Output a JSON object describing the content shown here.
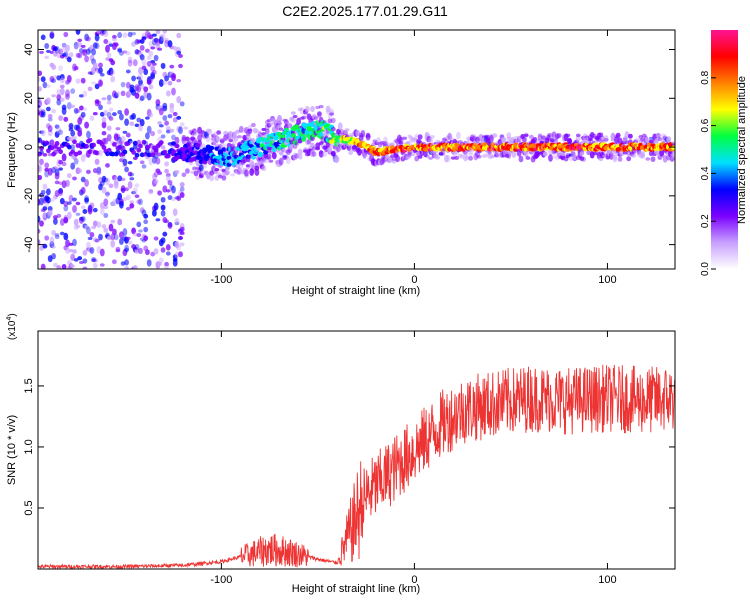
{
  "title": "C2E2.2025.177.01.29.G11",
  "chart_data": [
    {
      "type": "heatmap",
      "xlabel": "Height of straight line (km)",
      "ylabel": "Frequency (Hz)",
      "xlim": [
        -195,
        135
      ],
      "ylim": [
        -50,
        48
      ],
      "x_ticks": [
        -100,
        0,
        100
      ],
      "y_ticks": [
        -40,
        -20,
        0,
        20,
        40
      ],
      "colorbar": {
        "label": "Normalized spectral amplitude",
        "range": [
          0,
          1
        ],
        "ticks": [
          0.0,
          0.2,
          0.4,
          0.6,
          0.8
        ],
        "colors": [
          "#ffffff",
          "#c8a0ff",
          "#7a00ff",
          "#0000ff",
          "#00e0ff",
          "#00ff40",
          "#ffff00",
          "#ff8000",
          "#ff0000",
          "#ff1493"
        ]
      },
      "ridge": {
        "x": [
          -195,
          -160,
          -130,
          -110,
          -95,
          -80,
          -65,
          -55,
          -48,
          -40,
          -30,
          -20,
          -10,
          0,
          10,
          30,
          60,
          100,
          135
        ],
        "frequency": [
          0,
          0,
          -1,
          -3,
          -4,
          0,
          4,
          7,
          7,
          4,
          2,
          -2,
          -1,
          0,
          0,
          0,
          0,
          0,
          0
        ],
        "amplitude": [
          0.2,
          0.2,
          0.25,
          0.35,
          0.45,
          0.5,
          0.55,
          0.6,
          0.6,
          0.65,
          0.8,
          0.85,
          0.9,
          0.92,
          0.92,
          0.92,
          0.92,
          0.92,
          0.92
        ]
      }
    },
    {
      "type": "line",
      "xlabel": "Height of straight line (km)",
      "ylabel": "SNR (10 * v/v)",
      "y_multiplier": "(x10^4)",
      "xlim": [
        -195,
        135
      ],
      "ylim": [
        0,
        1.95
      ],
      "x_ticks": [
        -100,
        0,
        100
      ],
      "y_ticks": [
        0.5,
        1.0,
        1.5
      ],
      "y_tick_labels": [
        "0.5",
        "1.0",
        "1.5"
      ],
      "color": "#ee3333",
      "envelope": {
        "x": [
          -195,
          -150,
          -120,
          -100,
          -85,
          -75,
          -65,
          -50,
          -40,
          -32,
          -25,
          -15,
          -5,
          5,
          15,
          25,
          40,
          60,
          80,
          100,
          120,
          135
        ],
        "y": [
          0.02,
          0.02,
          0.03,
          0.06,
          0.12,
          0.16,
          0.14,
          0.08,
          0.05,
          0.35,
          0.6,
          0.75,
          0.9,
          1.05,
          1.2,
          1.3,
          1.35,
          1.4,
          1.38,
          1.4,
          1.38,
          1.4
        ]
      }
    }
  ]
}
